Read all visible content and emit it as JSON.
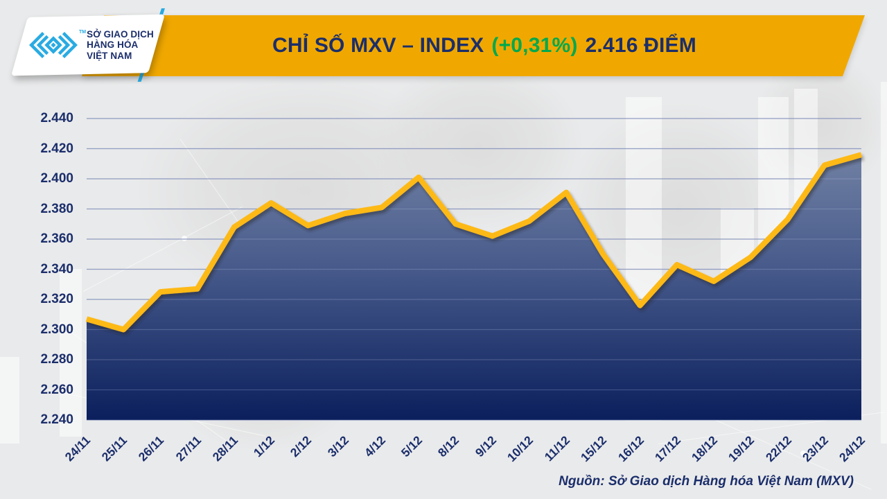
{
  "header": {
    "title_prefix": "CHỈ SỐ MXV – INDEX",
    "title_change": "(+0,31%)",
    "title_suffix": "2.416 ĐIỂM",
    "logo": {
      "lines": [
        "SỞ GIAO DỊCH",
        "HÀNG HÓA",
        "VIỆT NAM"
      ],
      "tm": "TM"
    }
  },
  "chart_data": {
    "type": "area",
    "title": "CHỈ SỐ MXV – INDEX (+0,31%) 2.416 ĐIỂM",
    "change_percent": "+0,31%",
    "last_value_label": "2.416 ĐIỂM",
    "categories": [
      "24/11",
      "25/11",
      "26/11",
      "27/11",
      "28/11",
      "1/12",
      "2/12",
      "3/12",
      "4/12",
      "5/12",
      "8/12",
      "9/12",
      "10/12",
      "11/12",
      "15/12",
      "16/12",
      "17/12",
      "18/12",
      "19/12",
      "22/12",
      "23/12",
      "24/12"
    ],
    "values": [
      2.307,
      2.3,
      2.325,
      2.327,
      2.368,
      2.384,
      2.369,
      2.377,
      2.381,
      2.401,
      2.37,
      2.362,
      2.372,
      2.391,
      2.35,
      2.316,
      2.343,
      2.332,
      2.348,
      2.373,
      2.409,
      2.416
    ],
    "ylim": [
      2.24,
      2.44
    ],
    "y_ticks": [
      "2.440",
      "2.420",
      "2.400",
      "2.380",
      "2.360",
      "2.340",
      "2.320",
      "2.300",
      "2.280",
      "2.260",
      "2.240"
    ],
    "xlabel": "",
    "ylabel": "",
    "grid": true,
    "legend": "none"
  },
  "colors": {
    "banner_gold": "#F0A800",
    "navy_text": "#1B2E6B",
    "green_change": "#00A94E",
    "line_yellow": "#FDB913",
    "accent_blue": "#29ABE2",
    "area_top": "#7D8CAB",
    "area_mid": "#46598A",
    "area_bottom": "#0A1E5C",
    "gridline": "#6272A4",
    "background": "#E9EAEB"
  },
  "footer": {
    "source": "Nguồn: Sở Giao dịch Hàng hóa Việt Nam (MXV)"
  }
}
